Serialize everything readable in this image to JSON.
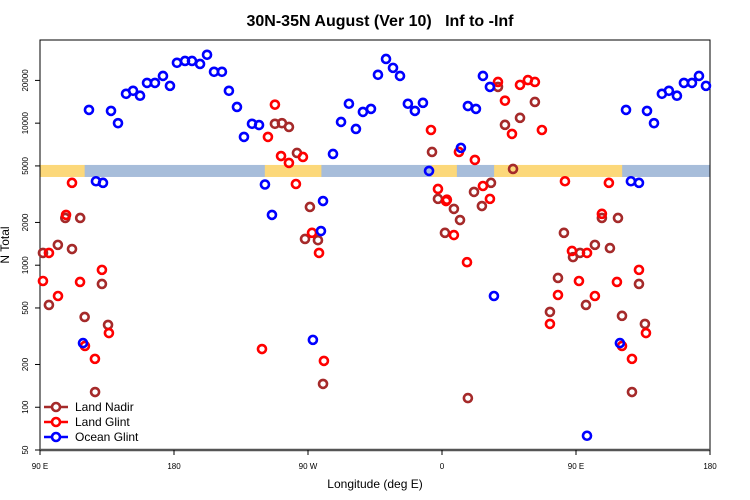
{
  "chart_data": {
    "type": "scatter",
    "title": "30N-35N August (Ver 10)   Inf to -Inf",
    "xlabel": "Longitude (deg E)",
    "ylabel": "N Total",
    "yscale": "log",
    "xlim": [
      90,
      540
    ],
    "ylim": [
      50,
      38500
    ],
    "x_ticks": [
      {
        "value": 90,
        "label": "90 E"
      },
      {
        "value": 180,
        "label": "180"
      },
      {
        "value": 270,
        "label": "90 W"
      },
      {
        "value": 360,
        "label": "0"
      },
      {
        "value": 450,
        "label": "90 E"
      },
      {
        "value": 540,
        "label": "180"
      }
    ],
    "y_ticks": [
      {
        "value": 50,
        "label": "50"
      },
      {
        "value": 100,
        "label": "100"
      },
      {
        "value": 200,
        "label": "200"
      },
      {
        "value": 500,
        "label": "500"
      },
      {
        "value": 1000,
        "label": "1000"
      },
      {
        "value": 2000,
        "label": "2000"
      },
      {
        "value": 5000,
        "label": "5000"
      },
      {
        "value": 10000,
        "label": "10000"
      },
      {
        "value": 20000,
        "label": "20000"
      }
    ],
    "legend_position": "bottom-left",
    "surface_band": {
      "y_range": [
        4180,
        5080
      ],
      "colors": {
        "land": "#fcd87a",
        "ocean": "#a7bdda"
      },
      "segments": [
        {
          "type": "land",
          "from": 90,
          "to": 120
        },
        {
          "type": "ocean",
          "from": 120,
          "to": 241
        },
        {
          "type": "land",
          "from": 241,
          "to": 279
        },
        {
          "type": "ocean",
          "from": 279,
          "to": 353
        },
        {
          "type": "land",
          "from": 353,
          "to": 370
        },
        {
          "type": "ocean",
          "from": 370,
          "to": 395
        },
        {
          "type": "land",
          "from": 395,
          "to": 481
        },
        {
          "type": "ocean",
          "from": 481,
          "to": 540
        }
      ]
    },
    "series": [
      {
        "name": "Land Nadir",
        "color": "#a52a2a",
        "points": [
          [
            92,
            1220
          ],
          [
            96,
            525
          ],
          [
            102,
            1390
          ],
          [
            107,
            2150
          ],
          [
            111.5,
            1300
          ],
          [
            117,
            2150
          ],
          [
            120,
            432
          ],
          [
            127,
            128
          ],
          [
            131.6,
            738
          ],
          [
            135.7,
            380
          ],
          [
            247.8,
            9900
          ],
          [
            252.5,
            10000
          ],
          [
            257.2,
            9400
          ],
          [
            262.6,
            6170
          ],
          [
            271.3,
            2570
          ],
          [
            268,
            1530
          ],
          [
            276.7,
            1500
          ],
          [
            280.1,
            146
          ],
          [
            353.3,
            6270
          ],
          [
            357.3,
            2930
          ],
          [
            368,
            2490
          ],
          [
            372.1,
            2080
          ],
          [
            362,
            1690
          ],
          [
            397.6,
            18000
          ],
          [
            422.4,
            14100
          ],
          [
            412.4,
            10900
          ],
          [
            402.3,
            9730
          ],
          [
            407.7,
            4760
          ],
          [
            392.9,
            3800
          ],
          [
            381.5,
            3280
          ],
          [
            386.8,
            2610
          ],
          [
            377.4,
            116
          ],
          [
            441.9,
            1690
          ],
          [
            467.4,
            2150
          ],
          [
            478.2,
            2150
          ],
          [
            462.7,
            1390
          ],
          [
            472.8,
            1320
          ],
          [
            448,
            1140
          ],
          [
            452.7,
            1220
          ],
          [
            437.9,
            813
          ],
          [
            492.3,
            738
          ],
          [
            456.7,
            525
          ],
          [
            432.5,
            469
          ],
          [
            480.9,
            440
          ],
          [
            496.3,
            386
          ],
          [
            487.6,
            128
          ]
        ]
      },
      {
        "name": "Land Glint",
        "color": "#ff0000",
        "points": [
          [
            92,
            774
          ],
          [
            96,
            1220
          ],
          [
            102.1,
            607
          ],
          [
            107.5,
            2260
          ],
          [
            111.5,
            3800
          ],
          [
            116.9,
            762
          ],
          [
            131.6,
            927
          ],
          [
            120.2,
            270
          ],
          [
            126.9,
            219
          ],
          [
            136.3,
            333
          ],
          [
            247.8,
            13500
          ],
          [
            243.1,
            8000
          ],
          [
            251.9,
            5870
          ],
          [
            257.2,
            5250
          ],
          [
            266.6,
            5780
          ],
          [
            261.9,
            3730
          ],
          [
            272.7,
            1690
          ],
          [
            277.4,
            1220
          ],
          [
            280.7,
            212
          ],
          [
            239.1,
            257
          ],
          [
            352.6,
            8950
          ],
          [
            357.3,
            3440
          ],
          [
            363.3,
            2890
          ],
          [
            368,
            1630
          ],
          [
            376.8,
            1050
          ],
          [
            371.4,
            6270
          ],
          [
            382.1,
            5510
          ],
          [
            397.6,
            19500
          ],
          [
            402.3,
            14400
          ],
          [
            412.4,
            18600
          ],
          [
            417.7,
            20100
          ],
          [
            422.4,
            19500
          ],
          [
            407,
            8400
          ],
          [
            427.1,
            8950
          ],
          [
            387.5,
            3610
          ],
          [
            392.2,
            2930
          ],
          [
            362.7,
            2830
          ],
          [
            442.6,
            3900
          ],
          [
            472.1,
            3800
          ],
          [
            467.4,
            2300
          ],
          [
            447.3,
            1260
          ],
          [
            457.4,
            1220
          ],
          [
            452,
            774
          ],
          [
            477.5,
            762
          ],
          [
            492.3,
            927
          ],
          [
            437.9,
            617
          ],
          [
            462.7,
            607
          ],
          [
            432.5,
            386
          ],
          [
            497,
            333
          ],
          [
            480.9,
            270
          ],
          [
            487.6,
            219
          ]
        ]
      },
      {
        "name": "Ocean Glint",
        "color": "#0000ff",
        "points": [
          [
            122.9,
            12400
          ],
          [
            137.7,
            12200
          ],
          [
            142.4,
            10000
          ],
          [
            147.8,
            16100
          ],
          [
            152.5,
            16900
          ],
          [
            157.2,
            15600
          ],
          [
            161.9,
            19200
          ],
          [
            167.2,
            19200
          ],
          [
            172.6,
            21500
          ],
          [
            177.3,
            18300
          ],
          [
            182,
            26600
          ],
          [
            187.4,
            27400
          ],
          [
            192.1,
            27400
          ],
          [
            197.5,
            26100
          ],
          [
            202.2,
            30300
          ],
          [
            206.9,
            23000
          ],
          [
            212.2,
            23000
          ],
          [
            216.9,
            16900
          ],
          [
            222.3,
            13000
          ],
          [
            227,
            8000
          ],
          [
            232.4,
            9900
          ],
          [
            237.1,
            9700
          ],
          [
            241.1,
            3700
          ],
          [
            245.8,
            2260
          ],
          [
            127.6,
            3900
          ],
          [
            132.3,
            3800
          ],
          [
            118.9,
            283
          ],
          [
            273.3,
            298
          ],
          [
            278.7,
            1740
          ],
          [
            280.1,
            2830
          ],
          [
            286.8,
            6070
          ],
          [
            292.2,
            10200
          ],
          [
            297.5,
            13700
          ],
          [
            302.2,
            9100
          ],
          [
            306.9,
            12000
          ],
          [
            312.3,
            12600
          ],
          [
            317,
            21900
          ],
          [
            322.4,
            28300
          ],
          [
            327.1,
            24500
          ],
          [
            331.8,
            21500
          ],
          [
            337.1,
            13700
          ],
          [
            341.8,
            12200
          ],
          [
            347.2,
            13900
          ],
          [
            351.3,
            4610
          ],
          [
            372.7,
            6700
          ],
          [
            377.4,
            13200
          ],
          [
            382.8,
            12600
          ],
          [
            387.5,
            21500
          ],
          [
            392.2,
            18000
          ],
          [
            394.9,
            607
          ],
          [
            483.6,
            12400
          ],
          [
            497.7,
            12200
          ],
          [
            502.4,
            10000
          ],
          [
            507.7,
            16100
          ],
          [
            512.4,
            16900
          ],
          [
            517.8,
            15600
          ],
          [
            522.5,
            19200
          ],
          [
            527.9,
            19200
          ],
          [
            532.6,
            21500
          ],
          [
            537.3,
            18300
          ],
          [
            486.9,
            3900
          ],
          [
            492.3,
            3800
          ],
          [
            479.5,
            283
          ],
          [
            457.4,
            63
          ]
        ]
      }
    ]
  }
}
